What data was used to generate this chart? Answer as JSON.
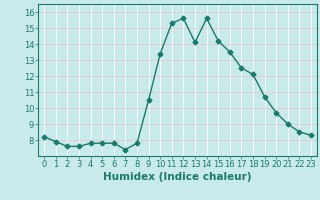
{
  "x": [
    0,
    1,
    2,
    3,
    4,
    5,
    6,
    7,
    8,
    9,
    10,
    11,
    12,
    13,
    14,
    15,
    16,
    17,
    18,
    19,
    20,
    21,
    22,
    23
  ],
  "y": [
    8.2,
    7.9,
    7.6,
    7.6,
    7.8,
    7.8,
    7.8,
    7.4,
    7.8,
    10.5,
    13.4,
    15.3,
    15.6,
    14.1,
    15.6,
    14.2,
    13.5,
    12.5,
    12.1,
    10.7,
    9.7,
    9.0,
    8.5,
    8.3
  ],
  "line_color": "#1a7a6e",
  "marker": "D",
  "marker_size": 2.5,
  "background_color": "#c8eaea",
  "grid_color_major": "#e8c8c8",
  "grid_color_minor": "#ffffff",
  "xlabel": "Humidex (Indice chaleur)",
  "ylim": [
    7,
    16.5
  ],
  "yticks": [
    8,
    9,
    10,
    11,
    12,
    13,
    14,
    15,
    16
  ],
  "xticks": [
    0,
    1,
    2,
    3,
    4,
    5,
    6,
    7,
    8,
    9,
    10,
    11,
    12,
    13,
    14,
    15,
    16,
    17,
    18,
    19,
    20,
    21,
    22,
    23
  ],
  "xtick_labels": [
    "0",
    "1",
    "2",
    "3",
    "4",
    "5",
    "6",
    "7",
    "8",
    "9",
    "10",
    "11",
    "12",
    "13",
    "14",
    "15",
    "16",
    "17",
    "18",
    "19",
    "20",
    "21",
    "22",
    "23"
  ],
  "tick_color": "#1a7a6e",
  "label_color": "#1a7a6e",
  "tick_fontsize": 6,
  "xlabel_fontsize": 7.5
}
